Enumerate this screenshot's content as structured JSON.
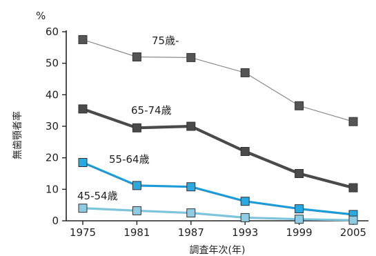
{
  "chart_data": {
    "type": "line",
    "title": "",
    "unit_label": "%",
    "ylabel": "無歯顎者率",
    "xlabel": "調査年次(年)",
    "x": [
      "1975",
      "1981",
      "1987",
      "1993",
      "1999",
      "2005"
    ],
    "ylim": [
      0,
      60
    ],
    "yticks": [
      "0",
      "10",
      "20",
      "30",
      "40",
      "50",
      "60"
    ],
    "grid": false,
    "legend": "inline labels",
    "series": [
      {
        "name": "75歳-",
        "values": [
          57.5,
          52.0,
          51.8,
          47.0,
          36.5,
          31.5
        ],
        "color": "#8a8a8a",
        "marker_color": "#555555"
      },
      {
        "name": "65-74歳",
        "values": [
          35.5,
          29.5,
          30.0,
          22.0,
          15.0,
          10.5
        ],
        "color": "#4a4a4a",
        "marker_color": "#4a4a4a"
      },
      {
        "name": "55-64歳",
        "values": [
          18.5,
          11.2,
          10.8,
          6.2,
          3.8,
          2.0
        ],
        "color": "#1e9bd7",
        "marker_color": "#2aa8e0"
      },
      {
        "name": "45-54歳",
        "values": [
          4.0,
          3.2,
          2.5,
          1.0,
          0.5,
          0.2
        ],
        "color": "#7fc4dd",
        "marker_color": "#8fcbe2"
      }
    ]
  }
}
